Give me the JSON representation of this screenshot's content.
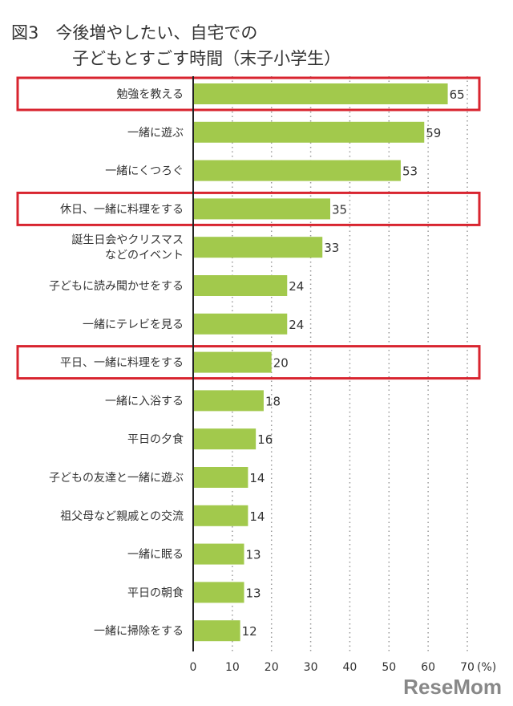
{
  "chart_data": {
    "type": "bar",
    "orientation": "horizontal",
    "figure_label": "図3",
    "title_line1": "今後増やしたい、自宅での",
    "title_line2": "子どもとすごす時間（末子小学生）",
    "categories": [
      "勉強を教える",
      "一緒に遊ぶ",
      "一緒にくつろぐ",
      "休日、一緒に料理をする",
      "誕生日会やクリスマス\nなどのイベント",
      "子どもに読み聞かせをする",
      "一緒にテレビを見る",
      "平日、一緒に料理をする",
      "一緒に入浴する",
      "平日の夕食",
      "子どもの友達と一緒に遊ぶ",
      "祖父母など親戚との交流",
      "一緒に眠る",
      "平日の朝食",
      "一緒に掃除をする"
    ],
    "values": [
      65,
      59,
      53,
      35,
      33,
      24,
      24,
      20,
      18,
      16,
      14,
      14,
      13,
      13,
      12
    ],
    "highlighted": [
      0,
      3,
      7
    ],
    "xlim": [
      0,
      70
    ],
    "xticks": [
      "0",
      "10",
      "20",
      "30",
      "40",
      "50",
      "60",
      "70"
    ],
    "xunit": "(%)",
    "grid": "vertical dotted",
    "colors": {
      "bar": "#a2c94c",
      "highlight": "#d8242f",
      "text": "#333333",
      "grid": "#999999"
    }
  },
  "watermark": "ReseMom"
}
